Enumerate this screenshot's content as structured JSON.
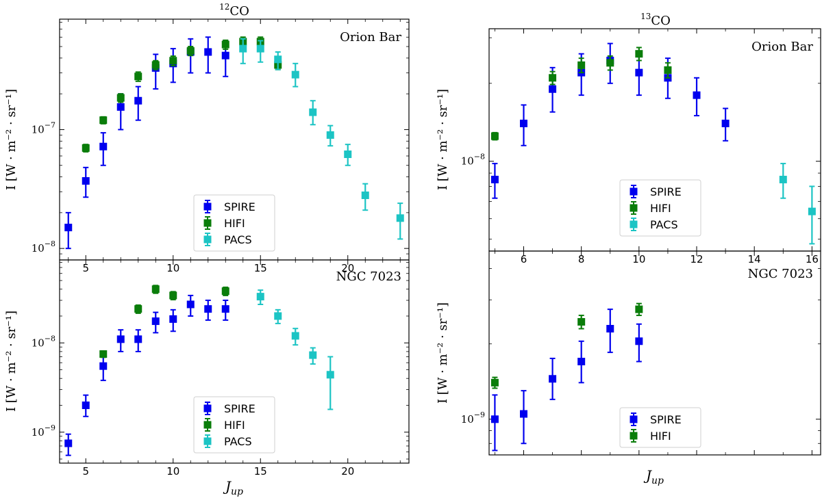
{
  "colors": {
    "SPIRE": "#0000ee",
    "HIFI": "#0a7d0a",
    "PACS": "#1cc4c4"
  },
  "chart_data": [
    {
      "id": "p12-orion",
      "type": "scatter",
      "title_sup": "12",
      "title_main": "CO",
      "panel_label": "Orion Bar",
      "ylabel": "I [W · m⁻² · sr⁻¹]",
      "yscale": "log",
      "ylim": [
        8e-09,
        8.5e-07
      ],
      "xlim": [
        3.5,
        23.5
      ],
      "xticks": [
        5,
        10,
        15,
        20
      ],
      "xtick_labels": [
        "5",
        "10",
        "15",
        "20"
      ],
      "ytick_labels": [
        {
          "base": "10",
          "exp": "−8",
          "value": 1e-08
        },
        {
          "base": "10",
          "exp": "−7",
          "value": 1e-07
        }
      ],
      "legend": {
        "position": "lower-center",
        "entries": [
          "SPIRE",
          "HIFI",
          "PACS"
        ]
      },
      "series": [
        {
          "name": "SPIRE",
          "points": [
            {
              "x": 4,
              "y": 1.5e-08,
              "lo": 1e-08,
              "hi": 2e-08
            },
            {
              "x": 5,
              "y": 3.7e-08,
              "lo": 2.7e-08,
              "hi": 4.8e-08
            },
            {
              "x": 6,
              "y": 7.2e-08,
              "lo": 5e-08,
              "hi": 9.4e-08
            },
            {
              "x": 7,
              "y": 1.55e-07,
              "lo": 1e-07,
              "hi": 2e-07
            },
            {
              "x": 8,
              "y": 1.75e-07,
              "lo": 1.2e-07,
              "hi": 2.3e-07
            },
            {
              "x": 9,
              "y": 3.3e-07,
              "lo": 2.2e-07,
              "hi": 4.3e-07
            },
            {
              "x": 10,
              "y": 3.6e-07,
              "lo": 2.5e-07,
              "hi": 4.8e-07
            },
            {
              "x": 11,
              "y": 4.5e-07,
              "lo": 3e-07,
              "hi": 5.8e-07
            },
            {
              "x": 12,
              "y": 4.5e-07,
              "lo": 3e-07,
              "hi": 6e-07
            },
            {
              "x": 13,
              "y": 4.2e-07,
              "lo": 2.8e-07,
              "hi": 5.6e-07
            }
          ]
        },
        {
          "name": "HIFI",
          "points": [
            {
              "x": 5,
              "y": 7e-08,
              "lo": 6.5e-08,
              "hi": 7.5e-08
            },
            {
              "x": 6,
              "y": 1.2e-07,
              "lo": 1.12e-07,
              "hi": 1.28e-07
            },
            {
              "x": 7,
              "y": 1.85e-07,
              "lo": 1.7e-07,
              "hi": 2e-07
            },
            {
              "x": 8,
              "y": 2.8e-07,
              "lo": 2.55e-07,
              "hi": 3.05e-07
            },
            {
              "x": 9,
              "y": 3.5e-07,
              "lo": 3.2e-07,
              "hi": 3.8e-07
            },
            {
              "x": 10,
              "y": 3.8e-07,
              "lo": 3.45e-07,
              "hi": 4.15e-07
            },
            {
              "x": 11,
              "y": 4.6e-07,
              "lo": 4.2e-07,
              "hi": 5e-07
            },
            {
              "x": 13,
              "y": 5.2e-07,
              "lo": 4.75e-07,
              "hi": 5.65e-07
            },
            {
              "x": 14,
              "y": 5.5e-07,
              "lo": 5e-07,
              "hi": 6e-07
            },
            {
              "x": 15,
              "y": 5.5e-07,
              "lo": 5e-07,
              "hi": 6e-07
            },
            {
              "x": 16,
              "y": 3.5e-07,
              "lo": 3.2e-07,
              "hi": 3.8e-07
            }
          ]
        },
        {
          "name": "PACS",
          "points": [
            {
              "x": 14,
              "y": 4.8e-07,
              "lo": 3.6e-07,
              "hi": 5.8e-07
            },
            {
              "x": 15,
              "y": 4.8e-07,
              "lo": 3.7e-07,
              "hi": 5.6e-07
            },
            {
              "x": 16,
              "y": 3.9e-07,
              "lo": 3.2e-07,
              "hi": 4.5e-07
            },
            {
              "x": 17,
              "y": 2.9e-07,
              "lo": 2.3e-07,
              "hi": 3.6e-07
            },
            {
              "x": 18,
              "y": 1.4e-07,
              "lo": 1.1e-07,
              "hi": 1.75e-07
            },
            {
              "x": 19,
              "y": 9e-08,
              "lo": 7.3e-08,
              "hi": 1.08e-07
            },
            {
              "x": 20,
              "y": 6.2e-08,
              "lo": 5e-08,
              "hi": 7.5e-08
            },
            {
              "x": 21,
              "y": 2.8e-08,
              "lo": 2.1e-08,
              "hi": 3.5e-08
            },
            {
              "x": 23,
              "y": 1.8e-08,
              "lo": 1.2e-08,
              "hi": 2.4e-08
            }
          ]
        }
      ]
    },
    {
      "id": "p12-ngc",
      "type": "scatter",
      "panel_label": "NGC 7023",
      "ylabel": "I [W · m⁻² · sr⁻¹]",
      "xlabel_main": "J",
      "xlabel_sub": "up",
      "yscale": "log",
      "ylim": [
        4.5e-10,
        8.5e-08
      ],
      "xlim": [
        3.5,
        23.5
      ],
      "xticks": [
        5,
        10,
        15,
        20
      ],
      "xtick_labels": [
        "5",
        "10",
        "15",
        "20"
      ],
      "ytick_labels": [
        {
          "base": "10",
          "exp": "−9",
          "value": 1e-09
        },
        {
          "base": "10",
          "exp": "−8",
          "value": 1e-08
        }
      ],
      "legend": {
        "position": "lower-center",
        "entries": [
          "SPIRE",
          "HIFI",
          "PACS"
        ]
      },
      "series": [
        {
          "name": "SPIRE",
          "points": [
            {
              "x": 4,
              "y": 7.5e-10,
              "lo": 5.5e-10,
              "hi": 9.5e-10
            },
            {
              "x": 5,
              "y": 2e-09,
              "lo": 1.5e-09,
              "hi": 2.6e-09
            },
            {
              "x": 6,
              "y": 5.5e-09,
              "lo": 3.8e-09,
              "hi": 7.2e-09
            },
            {
              "x": 7,
              "y": 1.1e-08,
              "lo": 8e-09,
              "hi": 1.4e-08
            },
            {
              "x": 8,
              "y": 1.1e-08,
              "lo": 8e-09,
              "hi": 1.4e-08
            },
            {
              "x": 9,
              "y": 1.75e-08,
              "lo": 1.3e-08,
              "hi": 2.2e-08
            },
            {
              "x": 10,
              "y": 1.85e-08,
              "lo": 1.35e-08,
              "hi": 2.35e-08
            },
            {
              "x": 11,
              "y": 2.7e-08,
              "lo": 2e-08,
              "hi": 3.4e-08
            },
            {
              "x": 12,
              "y": 2.4e-08,
              "lo": 1.8e-08,
              "hi": 3e-08
            },
            {
              "x": 13,
              "y": 2.4e-08,
              "lo": 1.8e-08,
              "hi": 3e-08
            }
          ]
        },
        {
          "name": "HIFI",
          "points": [
            {
              "x": 6,
              "y": 7.5e-09,
              "lo": 6.9e-09,
              "hi": 8.1e-09
            },
            {
              "x": 8,
              "y": 2.4e-08,
              "lo": 2.15e-08,
              "hi": 2.65e-08
            },
            {
              "x": 9,
              "y": 4e-08,
              "lo": 3.6e-08,
              "hi": 4.4e-08
            },
            {
              "x": 10,
              "y": 3.4e-08,
              "lo": 3.05e-08,
              "hi": 3.75e-08
            },
            {
              "x": 13,
              "y": 3.8e-08,
              "lo": 3.4e-08,
              "hi": 4.2e-08
            }
          ]
        },
        {
          "name": "PACS",
          "points": [
            {
              "x": 15,
              "y": 3.3e-08,
              "lo": 2.7e-08,
              "hi": 3.9e-08
            },
            {
              "x": 16,
              "y": 2e-08,
              "lo": 1.65e-08,
              "hi": 2.35e-08
            },
            {
              "x": 17,
              "y": 1.2e-08,
              "lo": 9.5e-09,
              "hi": 1.45e-08
            },
            {
              "x": 18,
              "y": 7.3e-09,
              "lo": 5.8e-09,
              "hi": 8.8e-09
            },
            {
              "x": 19,
              "y": 4.4e-09,
              "lo": 1.8e-09,
              "hi": 7e-09
            }
          ]
        }
      ]
    },
    {
      "id": "p13-orion",
      "type": "scatter",
      "title_sup": "13",
      "title_main": "CO",
      "panel_label": "Orion Bar",
      "ylabel": "I [W · m⁻² · sr⁻¹]",
      "yscale": "log",
      "ylim": [
        4.5e-09,
        3.25e-08
      ],
      "xlim": [
        4.8,
        16.3
      ],
      "xticks": [
        6,
        8,
        10,
        12,
        14,
        16
      ],
      "xtick_labels": [
        "6",
        "8",
        "10",
        "12",
        "14",
        "16"
      ],
      "ytick_labels": [
        {
          "base": "10",
          "exp": "−8",
          "value": 1e-08
        }
      ],
      "legend": {
        "position": "lower-center",
        "entries": [
          "SPIRE",
          "HIFI",
          "PACS"
        ]
      },
      "series": [
        {
          "name": "SPIRE",
          "points": [
            {
              "x": 5,
              "y": 8.5e-09,
              "lo": 7.2e-09,
              "hi": 9.8e-09
            },
            {
              "x": 6,
              "y": 1.4e-08,
              "lo": 1.15e-08,
              "hi": 1.65e-08
            },
            {
              "x": 7,
              "y": 1.9e-08,
              "lo": 1.55e-08,
              "hi": 2.3e-08
            },
            {
              "x": 8,
              "y": 2.2e-08,
              "lo": 1.8e-08,
              "hi": 2.6e-08
            },
            {
              "x": 9,
              "y": 2.45e-08,
              "lo": 2e-08,
              "hi": 2.85e-08
            },
            {
              "x": 10,
              "y": 2.2e-08,
              "lo": 1.8e-08,
              "hi": 2.6e-08
            },
            {
              "x": 11,
              "y": 2.1e-08,
              "lo": 1.75e-08,
              "hi": 2.5e-08
            },
            {
              "x": 12,
              "y": 1.8e-08,
              "lo": 1.5e-08,
              "hi": 2.1e-08
            },
            {
              "x": 13,
              "y": 1.4e-08,
              "lo": 1.2e-08,
              "hi": 1.6e-08
            }
          ]
        },
        {
          "name": "HIFI",
          "points": [
            {
              "x": 5,
              "y": 1.25e-08,
              "lo": 1.21e-08,
              "hi": 1.29e-08
            },
            {
              "x": 7,
              "y": 2.1e-08,
              "lo": 1.98e-08,
              "hi": 2.22e-08
            },
            {
              "x": 8,
              "y": 2.35e-08,
              "lo": 2.2e-08,
              "hi": 2.5e-08
            },
            {
              "x": 9,
              "y": 2.4e-08,
              "lo": 2.25e-08,
              "hi": 2.55e-08
            },
            {
              "x": 10,
              "y": 2.6e-08,
              "lo": 2.45e-08,
              "hi": 2.75e-08
            },
            {
              "x": 11,
              "y": 2.25e-08,
              "lo": 2.1e-08,
              "hi": 2.4e-08
            }
          ]
        },
        {
          "name": "PACS",
          "points": [
            {
              "x": 15,
              "y": 8.5e-09,
              "lo": 7.2e-09,
              "hi": 9.8e-09
            },
            {
              "x": 16,
              "y": 6.4e-09,
              "lo": 4.8e-09,
              "hi": 8e-09
            }
          ]
        }
      ]
    },
    {
      "id": "p13-ngc",
      "type": "scatter",
      "panel_label": "NGC 7023",
      "ylabel": "I [W · m⁻² · sr⁻¹]",
      "xlabel_main": "J",
      "xlabel_sub": "up",
      "yscale": "log",
      "ylim": [
        7.2e-10,
        4.7e-09
      ],
      "xlim": [
        4.8,
        16.3
      ],
      "xticks": [
        6,
        8,
        10,
        12,
        14,
        16
      ],
      "xtick_labels": [
        "6",
        "8",
        "10",
        "12",
        "14",
        "16"
      ],
      "ytick_labels": [
        {
          "base": "10",
          "exp": "−9",
          "value": 1e-09
        }
      ],
      "legend": {
        "position": "lower-center",
        "entries": [
          "SPIRE",
          "HIFI"
        ]
      },
      "series": [
        {
          "name": "SPIRE",
          "points": [
            {
              "x": 5,
              "y": 1e-09,
              "lo": 7.5e-10,
              "hi": 1.25e-09
            },
            {
              "x": 6,
              "y": 1.05e-09,
              "lo": 8e-10,
              "hi": 1.3e-09
            },
            {
              "x": 7,
              "y": 1.45e-09,
              "lo": 1.2e-09,
              "hi": 1.75e-09
            },
            {
              "x": 8,
              "y": 1.7e-09,
              "lo": 1.4e-09,
              "hi": 2.05e-09
            },
            {
              "x": 9,
              "y": 2.3e-09,
              "lo": 1.85e-09,
              "hi": 2.75e-09
            },
            {
              "x": 10,
              "y": 2.05e-09,
              "lo": 1.7e-09,
              "hi": 2.4e-09
            }
          ]
        },
        {
          "name": "HIFI",
          "points": [
            {
              "x": 5,
              "y": 1.4e-09,
              "lo": 1.33e-09,
              "hi": 1.47e-09
            },
            {
              "x": 8,
              "y": 2.45e-09,
              "lo": 2.3e-09,
              "hi": 2.6e-09
            },
            {
              "x": 10,
              "y": 2.75e-09,
              "lo": 2.6e-09,
              "hi": 2.9e-09
            }
          ]
        }
      ]
    }
  ]
}
